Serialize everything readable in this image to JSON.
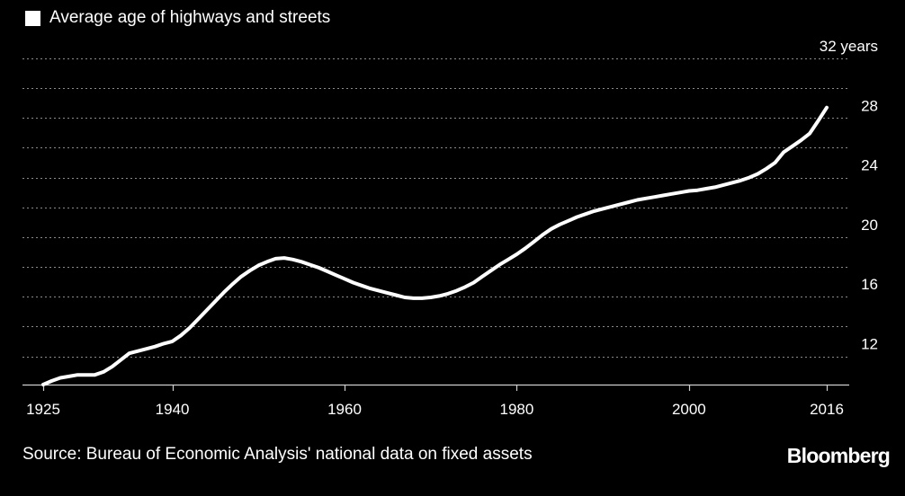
{
  "chart_data": {
    "type": "line",
    "series": [
      {
        "name": "Average age of highways and streets",
        "color": "#ffffff",
        "points": [
          [
            1925,
            10.1
          ],
          [
            1926,
            10.35
          ],
          [
            1927,
            10.55
          ],
          [
            1928,
            10.65
          ],
          [
            1929,
            10.75
          ],
          [
            1930,
            10.75
          ],
          [
            1931,
            10.75
          ],
          [
            1932,
            10.95
          ],
          [
            1933,
            11.3
          ],
          [
            1934,
            11.75
          ],
          [
            1935,
            12.2
          ],
          [
            1936,
            12.35
          ],
          [
            1937,
            12.5
          ],
          [
            1938,
            12.65
          ],
          [
            1939,
            12.85
          ],
          [
            1940,
            13.0
          ],
          [
            1941,
            13.4
          ],
          [
            1942,
            13.9
          ],
          [
            1943,
            14.5
          ],
          [
            1944,
            15.1
          ],
          [
            1945,
            15.7
          ],
          [
            1946,
            16.3
          ],
          [
            1947,
            16.85
          ],
          [
            1948,
            17.35
          ],
          [
            1949,
            17.75
          ],
          [
            1950,
            18.1
          ],
          [
            1951,
            18.35
          ],
          [
            1952,
            18.55
          ],
          [
            1953,
            18.6
          ],
          [
            1954,
            18.5
          ],
          [
            1955,
            18.35
          ],
          [
            1956,
            18.15
          ],
          [
            1957,
            17.95
          ],
          [
            1958,
            17.7
          ],
          [
            1959,
            17.45
          ],
          [
            1960,
            17.2
          ],
          [
            1961,
            16.95
          ],
          [
            1962,
            16.75
          ],
          [
            1963,
            16.55
          ],
          [
            1964,
            16.4
          ],
          [
            1965,
            16.25
          ],
          [
            1966,
            16.1
          ],
          [
            1967,
            15.95
          ],
          [
            1968,
            15.9
          ],
          [
            1969,
            15.9
          ],
          [
            1970,
            15.95
          ],
          [
            1971,
            16.05
          ],
          [
            1972,
            16.2
          ],
          [
            1973,
            16.4
          ],
          [
            1974,
            16.65
          ],
          [
            1975,
            16.95
          ],
          [
            1976,
            17.35
          ],
          [
            1977,
            17.75
          ],
          [
            1978,
            18.15
          ],
          [
            1979,
            18.5
          ],
          [
            1980,
            18.85
          ],
          [
            1981,
            19.25
          ],
          [
            1982,
            19.7
          ],
          [
            1983,
            20.15
          ],
          [
            1984,
            20.55
          ],
          [
            1985,
            20.85
          ],
          [
            1986,
            21.1
          ],
          [
            1987,
            21.35
          ],
          [
            1988,
            21.55
          ],
          [
            1989,
            21.75
          ],
          [
            1990,
            21.9
          ],
          [
            1991,
            22.05
          ],
          [
            1992,
            22.2
          ],
          [
            1993,
            22.35
          ],
          [
            1994,
            22.5
          ],
          [
            1995,
            22.6
          ],
          [
            1996,
            22.7
          ],
          [
            1997,
            22.8
          ],
          [
            1998,
            22.9
          ],
          [
            1999,
            23.0
          ],
          [
            2000,
            23.1
          ],
          [
            2001,
            23.15
          ],
          [
            2002,
            23.25
          ],
          [
            2003,
            23.35
          ],
          [
            2004,
            23.5
          ],
          [
            2005,
            23.65
          ],
          [
            2006,
            23.8
          ],
          [
            2007,
            24.0
          ],
          [
            2008,
            24.25
          ],
          [
            2009,
            24.6
          ],
          [
            2010,
            25.0
          ],
          [
            2011,
            25.7
          ],
          [
            2012,
            26.1
          ],
          [
            2013,
            26.5
          ],
          [
            2014,
            26.95
          ],
          [
            2015,
            27.8
          ],
          [
            2016,
            28.7
          ]
        ]
      }
    ],
    "xlim": [
      1925,
      2016
    ],
    "ylim": [
      10.1,
      32
    ],
    "x_ticks": [
      1925,
      1940,
      1960,
      1980,
      2000,
      2016
    ],
    "x_tick_labels": [
      "1925",
      "1940",
      "1960",
      "1980",
      "2000",
      "2016"
    ],
    "y_labeled_ticks": [
      12,
      16,
      20,
      24,
      28,
      32
    ],
    "y_tick_labels": [
      "12",
      "16",
      "20",
      "24",
      "28",
      "32 years"
    ],
    "y_gridlines": [
      12,
      14,
      16,
      18,
      20,
      22,
      24,
      26,
      28,
      30,
      32
    ],
    "grid": true,
    "legend_position": "top-left",
    "title": "",
    "xlabel": "",
    "ylabel": ""
  },
  "source": "Source: Bureau of Economic Analysis' national data on fixed assets",
  "brand": "Bloomberg",
  "colors": {
    "background": "#000000",
    "line": "#ffffff",
    "grid": "#8a8a8a"
  }
}
